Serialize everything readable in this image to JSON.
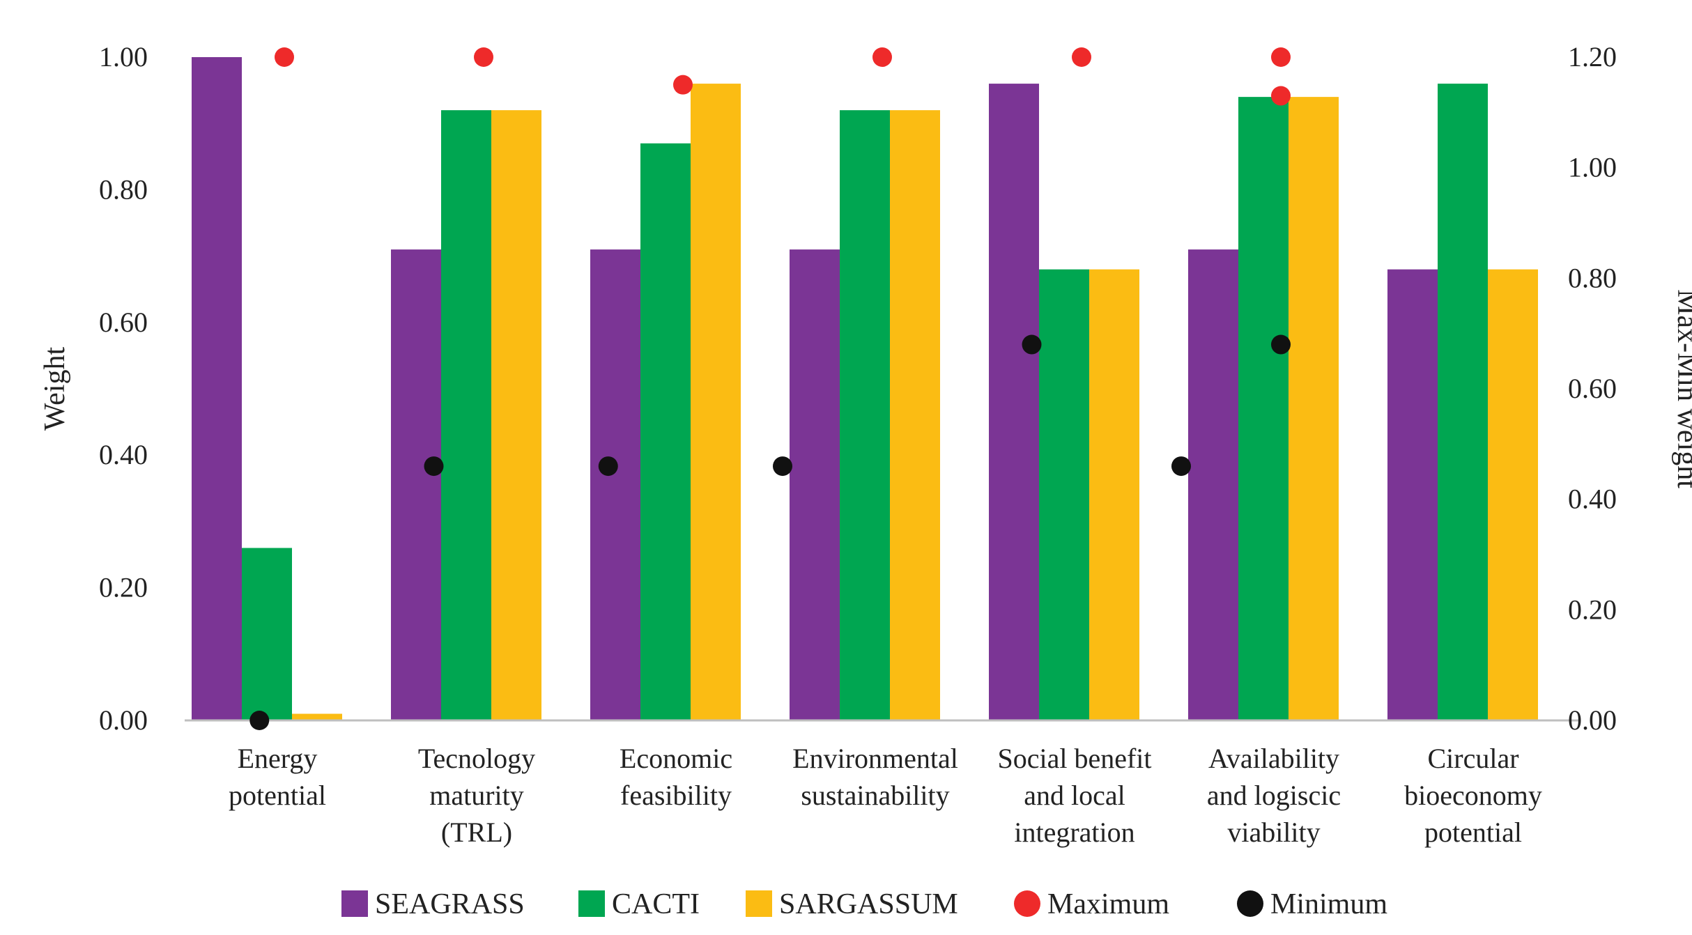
{
  "chart_data": {
    "type": "bar",
    "categories": [
      [
        "Energy",
        "potential"
      ],
      [
        "Tecnology",
        "maturity",
        "(TRL)"
      ],
      [
        "Economic",
        "feasibility"
      ],
      [
        "Environmental",
        "sustainability"
      ],
      [
        "Social benefit",
        "and local",
        "integration"
      ],
      [
        "Availability",
        "and logiscic",
        "viability"
      ],
      [
        "Circular",
        "bioeconomy",
        "potential"
      ]
    ],
    "series": [
      {
        "name": "SEAGRASS",
        "color": "#7b3595",
        "values": [
          1.0,
          0.71,
          0.71,
          0.71,
          0.96,
          0.71,
          0.68
        ]
      },
      {
        "name": "CACTI",
        "color": "#00a651",
        "values": [
          0.26,
          0.92,
          0.87,
          0.92,
          0.68,
          0.94,
          0.96
        ]
      },
      {
        "name": "SARGASSUM",
        "color": "#fbbc13",
        "values": [
          0.01,
          0.92,
          0.96,
          0.92,
          0.68,
          0.94,
          0.68
        ]
      }
    ],
    "markers": [
      {
        "name": "Maximum",
        "color": "#ee2a2a",
        "points": [
          {
            "x": 0.5,
            "y": 1.2
          },
          {
            "x": 1.5,
            "y": 1.2
          },
          {
            "x": 2.5,
            "y": 1.15
          },
          {
            "x": 3.5,
            "y": 1.2
          },
          {
            "x": 4.5,
            "y": 1.2
          },
          {
            "x": 5.5,
            "y": 1.2
          },
          {
            "x": 5.5,
            "y": 1.13
          }
        ]
      },
      {
        "name": "Minimum",
        "color": "#111111",
        "points": [
          {
            "x": 0.375,
            "y": 0.0
          },
          {
            "x": 1.25,
            "y": 0.46
          },
          {
            "x": 2.125,
            "y": 0.46
          },
          {
            "x": 3.0,
            "y": 0.46
          },
          {
            "x": 4.25,
            "y": 0.68
          },
          {
            "x": 5.0,
            "y": 0.46
          },
          {
            "x": 5.5,
            "y": 0.68
          }
        ]
      }
    ],
    "y_left": {
      "label": "Weight",
      "min": 0,
      "max": 1.0,
      "ticks": [
        "0.00",
        "0.20",
        "0.40",
        "0.60",
        "0.80",
        "1.00"
      ]
    },
    "y_right": {
      "label": "Max-Min weight",
      "min": 0,
      "max": 1.2,
      "ticks": [
        "0.00",
        "0.20",
        "0.40",
        "0.60",
        "0.80",
        "1.00",
        "1.20"
      ]
    },
    "legend": {
      "position": "bottom",
      "items": [
        {
          "label": "SEAGRASS",
          "shape": "square",
          "color": "#7b3595"
        },
        {
          "label": "CACTI",
          "shape": "square",
          "color": "#00a651"
        },
        {
          "label": "SARGASSUM",
          "shape": "square",
          "color": "#fbbc13"
        },
        {
          "label": "Maximum",
          "shape": "circle",
          "color": "#ee2a2a"
        },
        {
          "label": "Minimum",
          "shape": "circle",
          "color": "#111111"
        }
      ]
    },
    "grid": false
  }
}
